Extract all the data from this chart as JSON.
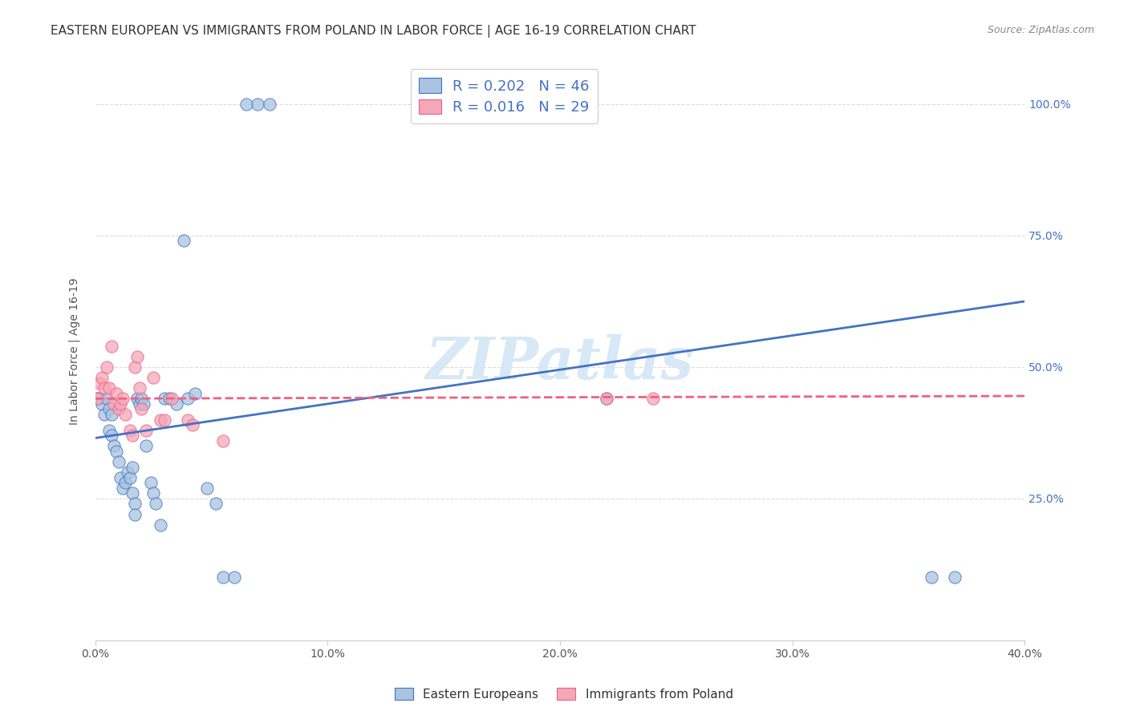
{
  "title": "EASTERN EUROPEAN VS IMMIGRANTS FROM POLAND IN LABOR FORCE | AGE 16-19 CORRELATION CHART",
  "source": "Source: ZipAtlas.com",
  "ylabel": "In Labor Force | Age 16-19",
  "xlim": [
    0.0,
    0.4
  ],
  "ylim": [
    -0.02,
    1.08
  ],
  "legend1_label": "R = 0.202   N = 46",
  "legend2_label": "R = 0.016   N = 29",
  "scatter_blue_color": "#a8c4e0",
  "scatter_pink_color": "#f4a7b9",
  "line_blue_color": "#4472c4",
  "line_pink_color": "#f06080",
  "watermark_color": "#d0e4f5",
  "blue_scatter_x": [
    0.001,
    0.002,
    0.003,
    0.004,
    0.005,
    0.006,
    0.006,
    0.007,
    0.007,
    0.008,
    0.009,
    0.01,
    0.011,
    0.012,
    0.013,
    0.014,
    0.015,
    0.016,
    0.016,
    0.017,
    0.017,
    0.018,
    0.019,
    0.02,
    0.021,
    0.022,
    0.024,
    0.025,
    0.026,
    0.028,
    0.03,
    0.032,
    0.035,
    0.038,
    0.04,
    0.043,
    0.048,
    0.052,
    0.055,
    0.06,
    0.065,
    0.07,
    0.075,
    0.22,
    0.36,
    0.37
  ],
  "blue_scatter_y": [
    0.44,
    0.44,
    0.43,
    0.41,
    0.44,
    0.42,
    0.38,
    0.37,
    0.41,
    0.35,
    0.34,
    0.32,
    0.29,
    0.27,
    0.28,
    0.3,
    0.29,
    0.31,
    0.26,
    0.24,
    0.22,
    0.44,
    0.43,
    0.44,
    0.43,
    0.35,
    0.28,
    0.26,
    0.24,
    0.2,
    0.44,
    0.44,
    0.43,
    0.74,
    0.44,
    0.45,
    0.27,
    0.24,
    0.1,
    0.1,
    1.0,
    1.0,
    1.0,
    0.44,
    0.1,
    0.1
  ],
  "pink_scatter_x": [
    0.001,
    0.002,
    0.003,
    0.004,
    0.005,
    0.006,
    0.007,
    0.008,
    0.009,
    0.01,
    0.011,
    0.012,
    0.013,
    0.015,
    0.016,
    0.017,
    0.018,
    0.019,
    0.02,
    0.022,
    0.025,
    0.028,
    0.03,
    0.033,
    0.04,
    0.042,
    0.055,
    0.22,
    0.24
  ],
  "pink_scatter_y": [
    0.44,
    0.47,
    0.48,
    0.46,
    0.5,
    0.46,
    0.54,
    0.43,
    0.45,
    0.42,
    0.43,
    0.44,
    0.41,
    0.38,
    0.37,
    0.5,
    0.52,
    0.46,
    0.42,
    0.38,
    0.48,
    0.4,
    0.4,
    0.44,
    0.4,
    0.39,
    0.36,
    0.44,
    0.44
  ],
  "blue_line_x": [
    0.0,
    0.4
  ],
  "blue_line_y": [
    0.365,
    0.625
  ],
  "pink_line_x": [
    0.0,
    0.4
  ],
  "pink_line_y": [
    0.44,
    0.445
  ],
  "yticks": [
    0.25,
    0.5,
    0.75,
    1.0
  ],
  "xticks": [
    0.0,
    0.1,
    0.2,
    0.3,
    0.4
  ],
  "grid_color": "#dddddd",
  "bg_color": "#ffffff",
  "title_fontsize": 11,
  "axis_label_fontsize": 10,
  "tick_fontsize": 10,
  "legend_fontsize": 13,
  "scatter_size": 120
}
